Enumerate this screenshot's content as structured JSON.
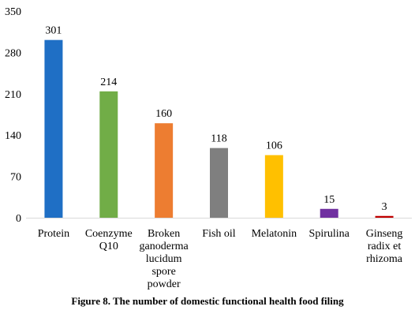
{
  "chart_data": {
    "type": "bar",
    "title": "",
    "xlabel": "",
    "ylabel": "",
    "categories": [
      [
        "Protein"
      ],
      [
        "Coenzyme",
        "Q10"
      ],
      [
        "Broken",
        "ganoderma",
        "lucidum",
        "spore",
        "powder"
      ],
      [
        "Fish oil"
      ],
      [
        "Melatonin"
      ],
      [
        "Spirulina"
      ],
      [
        "Ginseng",
        "radix et",
        "rhizoma"
      ]
    ],
    "values": [
      301,
      214,
      160,
      118,
      106,
      15,
      3
    ],
    "data_labels": [
      "301",
      "214",
      "160",
      "118",
      "106",
      "15",
      "3"
    ],
    "colors": [
      "#1f6fc5",
      "#71ad47",
      "#ed7d31",
      "#7f7f7f",
      "#ffc000",
      "#7030a0",
      "#c00000"
    ],
    "ylim": [
      0,
      350
    ],
    "yticks": [
      "0",
      "70",
      "140",
      "210",
      "280",
      "350"
    ],
    "grid": false,
    "legend": "none"
  },
  "caption": "Figure 8. The number of domestic functional health food filing"
}
